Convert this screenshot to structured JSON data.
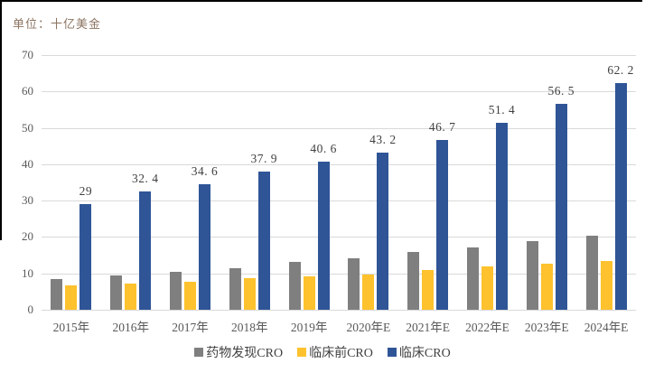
{
  "unit_label": "单位：十亿美金",
  "colors": {
    "unit_text": "#8b7360",
    "axis_text": "#595959",
    "data_label_text": "#3f3f3f",
    "gridline": "#d9d9d9",
    "crop_border": "#000000"
  },
  "chart_data": {
    "type": "bar",
    "title": "",
    "xlabel": "",
    "ylabel": "单位：十亿美金",
    "categories": [
      "2015年",
      "2016年",
      "2017年",
      "2018年",
      "2019年",
      "2020年E",
      "2021年E",
      "2022年E",
      "2023年E",
      "2024年E"
    ],
    "series": [
      {
        "name": "药物发现CRO",
        "color": "#7f7f7f",
        "values": [
          8.5,
          9.5,
          10.4,
          11.5,
          13.1,
          14.2,
          15.9,
          17.2,
          18.9,
          20.4
        ],
        "labels": [
          "",
          "",
          "",
          "",
          "",
          "",
          "",
          "",
          "",
          ""
        ]
      },
      {
        "name": "临床前CRO",
        "color": "#fdc22d",
        "values": [
          6.8,
          7.2,
          7.8,
          8.6,
          9.1,
          9.8,
          10.9,
          11.9,
          12.6,
          13.5
        ],
        "labels": [
          "",
          "",
          "",
          "",
          "",
          "",
          "",
          "",
          "",
          ""
        ]
      },
      {
        "name": "临床CRO",
        "color": "#2f5597",
        "values": [
          29,
          32.4,
          34.6,
          37.9,
          40.6,
          43.2,
          46.7,
          51.4,
          56.5,
          62.2
        ],
        "labels": [
          "29",
          "32. 4",
          "34. 6",
          "37. 9",
          "40. 6",
          "43. 2",
          "46. 7",
          "51. 4",
          "56. 5",
          "62. 2"
        ]
      }
    ],
    "ylim": [
      0,
      70
    ],
    "ytick_step": 10,
    "yticks": [
      "0",
      "10",
      "20",
      "30",
      "40",
      "50",
      "60",
      "70"
    ],
    "grid": true,
    "legend_position": "bottom"
  }
}
